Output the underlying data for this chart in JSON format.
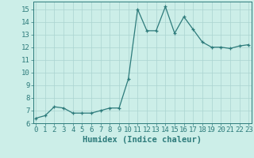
{
  "x": [
    0,
    1,
    2,
    3,
    4,
    5,
    6,
    7,
    8,
    9,
    10,
    11,
    12,
    13,
    14,
    15,
    16,
    17,
    18,
    19,
    20,
    21,
    22,
    23
  ],
  "y": [
    6.4,
    6.6,
    7.3,
    7.2,
    6.8,
    6.8,
    6.8,
    7.0,
    7.2,
    7.2,
    9.5,
    15.0,
    13.3,
    13.3,
    15.2,
    13.1,
    14.4,
    13.4,
    12.4,
    12.0,
    12.0,
    11.9,
    12.1,
    12.2
  ],
  "xlim": [
    -0.3,
    23.3
  ],
  "ylim": [
    6,
    15.6
  ],
  "yticks": [
    6,
    7,
    8,
    9,
    10,
    11,
    12,
    13,
    14,
    15
  ],
  "xticks": [
    0,
    1,
    2,
    3,
    4,
    5,
    6,
    7,
    8,
    9,
    10,
    11,
    12,
    13,
    14,
    15,
    16,
    17,
    18,
    19,
    20,
    21,
    22,
    23
  ],
  "xlabel": "Humidex (Indice chaleur)",
  "line_color": "#2d7b7b",
  "marker": "+",
  "bg_color": "#cceee8",
  "grid_color": "#aad4d0",
  "tick_color": "#2d7b7b",
  "label_color": "#2d7b7b",
  "spine_color": "#2d7b7b",
  "fontsize_tick": 6.5,
  "fontsize_label": 7.5
}
